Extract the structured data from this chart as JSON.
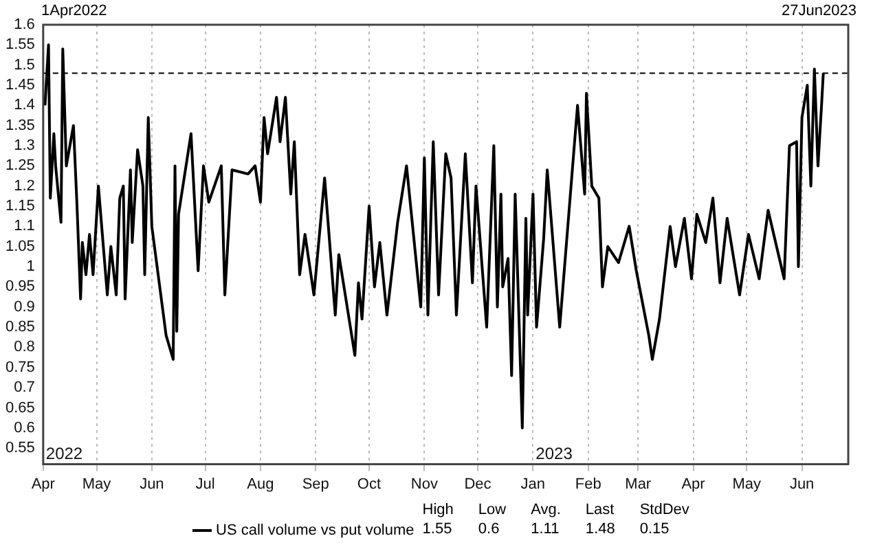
{
  "chart_data": {
    "type": "line",
    "xlabel": null,
    "annotations": [
      "1Apr2022",
      "27Jun2023",
      "2022",
      "2023",
      "High 1.55",
      "Low 0.6",
      "Avg. 1.11",
      "Last 1.48",
      "StdDev 0.15"
    ],
    "series": [
      {
        "name": "US call volume vs put volume",
        "color": "#000000",
        "x": [
          "2022-04-02",
          "2022-04-04",
          "2022-04-05",
          "2022-04-07",
          "2022-04-08",
          "2022-04-11",
          "2022-04-12",
          "2022-04-14",
          "2022-04-18",
          "2022-04-20",
          "2022-04-22",
          "2022-04-23",
          "2022-04-25",
          "2022-04-27",
          "2022-04-29",
          "2022-05-02",
          "2022-05-07",
          "2022-05-09",
          "2022-05-12",
          "2022-05-14",
          "2022-05-16",
          "2022-05-17",
          "2022-05-20",
          "2022-05-21",
          "2022-05-24",
          "2022-05-27",
          "2022-05-28",
          "2022-05-30",
          "2022-06-01",
          "2022-06-09",
          "2022-06-13",
          "2022-06-14",
          "2022-06-15",
          "2022-06-16",
          "2022-06-23",
          "2022-06-27",
          "2022-06-30",
          "2022-07-03",
          "2022-07-10",
          "2022-07-12",
          "2022-07-16",
          "2022-07-25",
          "2022-07-29",
          "2022-08-01",
          "2022-08-03",
          "2022-08-05",
          "2022-08-10",
          "2022-08-12",
          "2022-08-15",
          "2022-08-18",
          "2022-08-20",
          "2022-08-23",
          "2022-08-26",
          "2022-08-31",
          "2022-09-06",
          "2022-09-12",
          "2022-09-14",
          "2022-09-23",
          "2022-09-25",
          "2022-09-27",
          "2022-10-01",
          "2022-10-04",
          "2022-10-07",
          "2022-10-11",
          "2022-10-17",
          "2022-10-22",
          "2022-10-30",
          "2022-11-01",
          "2022-11-03",
          "2022-11-06",
          "2022-11-09",
          "2022-11-13",
          "2022-11-16",
          "2022-11-19",
          "2022-11-24",
          "2022-11-28",
          "2022-11-30",
          "2022-12-06",
          "2022-12-10",
          "2022-12-12",
          "2022-12-14",
          "2022-12-15",
          "2022-12-18",
          "2022-12-20",
          "2022-12-22",
          "2022-12-26",
          "2022-12-28",
          "2022-12-29",
          "2023-01-01",
          "2023-01-03",
          "2023-01-07",
          "2023-01-09",
          "2023-01-16",
          "2023-01-26",
          "2023-01-30",
          "2023-01-31",
          "2023-02-03",
          "2023-02-07",
          "2023-02-09",
          "2023-02-12",
          "2023-02-18",
          "2023-02-24",
          "2023-02-28",
          "2023-03-07",
          "2023-03-09",
          "2023-03-13",
          "2023-03-19",
          "2023-03-22",
          "2023-03-27",
          "2023-03-31",
          "2023-04-03",
          "2023-04-08",
          "2023-04-12",
          "2023-04-16",
          "2023-04-20",
          "2023-04-27",
          "2023-05-02",
          "2023-05-08",
          "2023-05-13",
          "2023-05-22",
          "2023-05-25",
          "2023-05-29",
          "2023-05-30",
          "2023-06-01",
          "2023-06-04",
          "2023-06-06",
          "2023-06-08",
          "2023-06-10",
          "2023-06-12",
          "2023-06-13"
        ],
        "values": [
          1.4,
          1.55,
          1.17,
          1.33,
          1.25,
          1.11,
          1.54,
          1.25,
          1.35,
          1.15,
          0.92,
          1.06,
          0.98,
          1.08,
          0.98,
          1.2,
          0.93,
          1.05,
          0.93,
          1.17,
          1.2,
          0.92,
          1.24,
          1.06,
          1.29,
          1.2,
          0.98,
          1.37,
          1.1,
          0.83,
          0.77,
          1.25,
          0.84,
          1.13,
          1.33,
          0.99,
          1.25,
          1.16,
          1.25,
          0.93,
          1.24,
          1.23,
          1.25,
          1.16,
          1.37,
          1.28,
          1.42,
          1.31,
          1.42,
          1.18,
          1.31,
          0.98,
          1.08,
          0.93,
          1.22,
          0.88,
          1.03,
          0.78,
          0.96,
          0.87,
          1.15,
          0.95,
          1.06,
          0.88,
          1.11,
          1.25,
          0.9,
          1.27,
          0.88,
          1.31,
          0.93,
          1.28,
          1.22,
          0.88,
          1.28,
          0.96,
          1.2,
          0.85,
          1.3,
          0.9,
          1.18,
          0.95,
          1.02,
          0.73,
          1.18,
          0.6,
          1.12,
          0.88,
          1.18,
          0.85,
          1.07,
          1.24,
          0.85,
          1.4,
          1.18,
          1.43,
          1.2,
          1.17,
          0.95,
          1.05,
          1.01,
          1.1,
          0.99,
          0.83,
          0.77,
          0.87,
          1.1,
          1.0,
          1.12,
          0.97,
          1.13,
          1.06,
          1.17,
          0.96,
          1.12,
          0.93,
          1.08,
          0.97,
          1.14,
          0.97,
          1.3,
          1.31,
          1.0,
          1.37,
          1.45,
          1.2,
          1.49,
          1.25,
          1.4,
          1.48
        ]
      }
    ],
    "xlim": [
      "2022-04-01",
      "2023-06-27"
    ],
    "xticks": [
      {
        "value": "2022-04-01",
        "label": "Apr"
      },
      {
        "value": "2022-05-01",
        "label": "May"
      },
      {
        "value": "2022-06-01",
        "label": "Jun"
      },
      {
        "value": "2022-07-01",
        "label": "Jul"
      },
      {
        "value": "2022-08-01",
        "label": "Aug"
      },
      {
        "value": "2022-09-01",
        "label": "Sep"
      },
      {
        "value": "2022-10-01",
        "label": "Oct"
      },
      {
        "value": "2022-11-01",
        "label": "Nov"
      },
      {
        "value": "2022-12-01",
        "label": "Dec"
      },
      {
        "value": "2023-01-01",
        "label": "Jan"
      },
      {
        "value": "2023-02-01",
        "label": "Feb"
      },
      {
        "value": "2023-03-01",
        "label": "Mar"
      },
      {
        "value": "2023-04-01",
        "label": "Apr"
      },
      {
        "value": "2023-05-01",
        "label": "May"
      },
      {
        "value": "2023-06-01",
        "label": "Jun"
      }
    ],
    "ylim": [
      0.51,
      1.6
    ],
    "yticks": [
      0.55,
      0.6,
      0.65,
      0.7,
      0.75,
      0.8,
      0.85,
      0.9,
      0.95,
      1,
      1.05,
      1.1,
      1.15,
      1.2,
      1.25,
      1.3,
      1.35,
      1.4,
      1.45,
      1.5,
      1.55,
      1.6
    ],
    "ref_lines": [
      {
        "axis": "y",
        "value": 1.48,
        "line_style": "dashed",
        "color": "#000000"
      }
    ],
    "grid": "x",
    "legend": "bottom",
    "marker": "none",
    "line_style": "solid"
  }
}
